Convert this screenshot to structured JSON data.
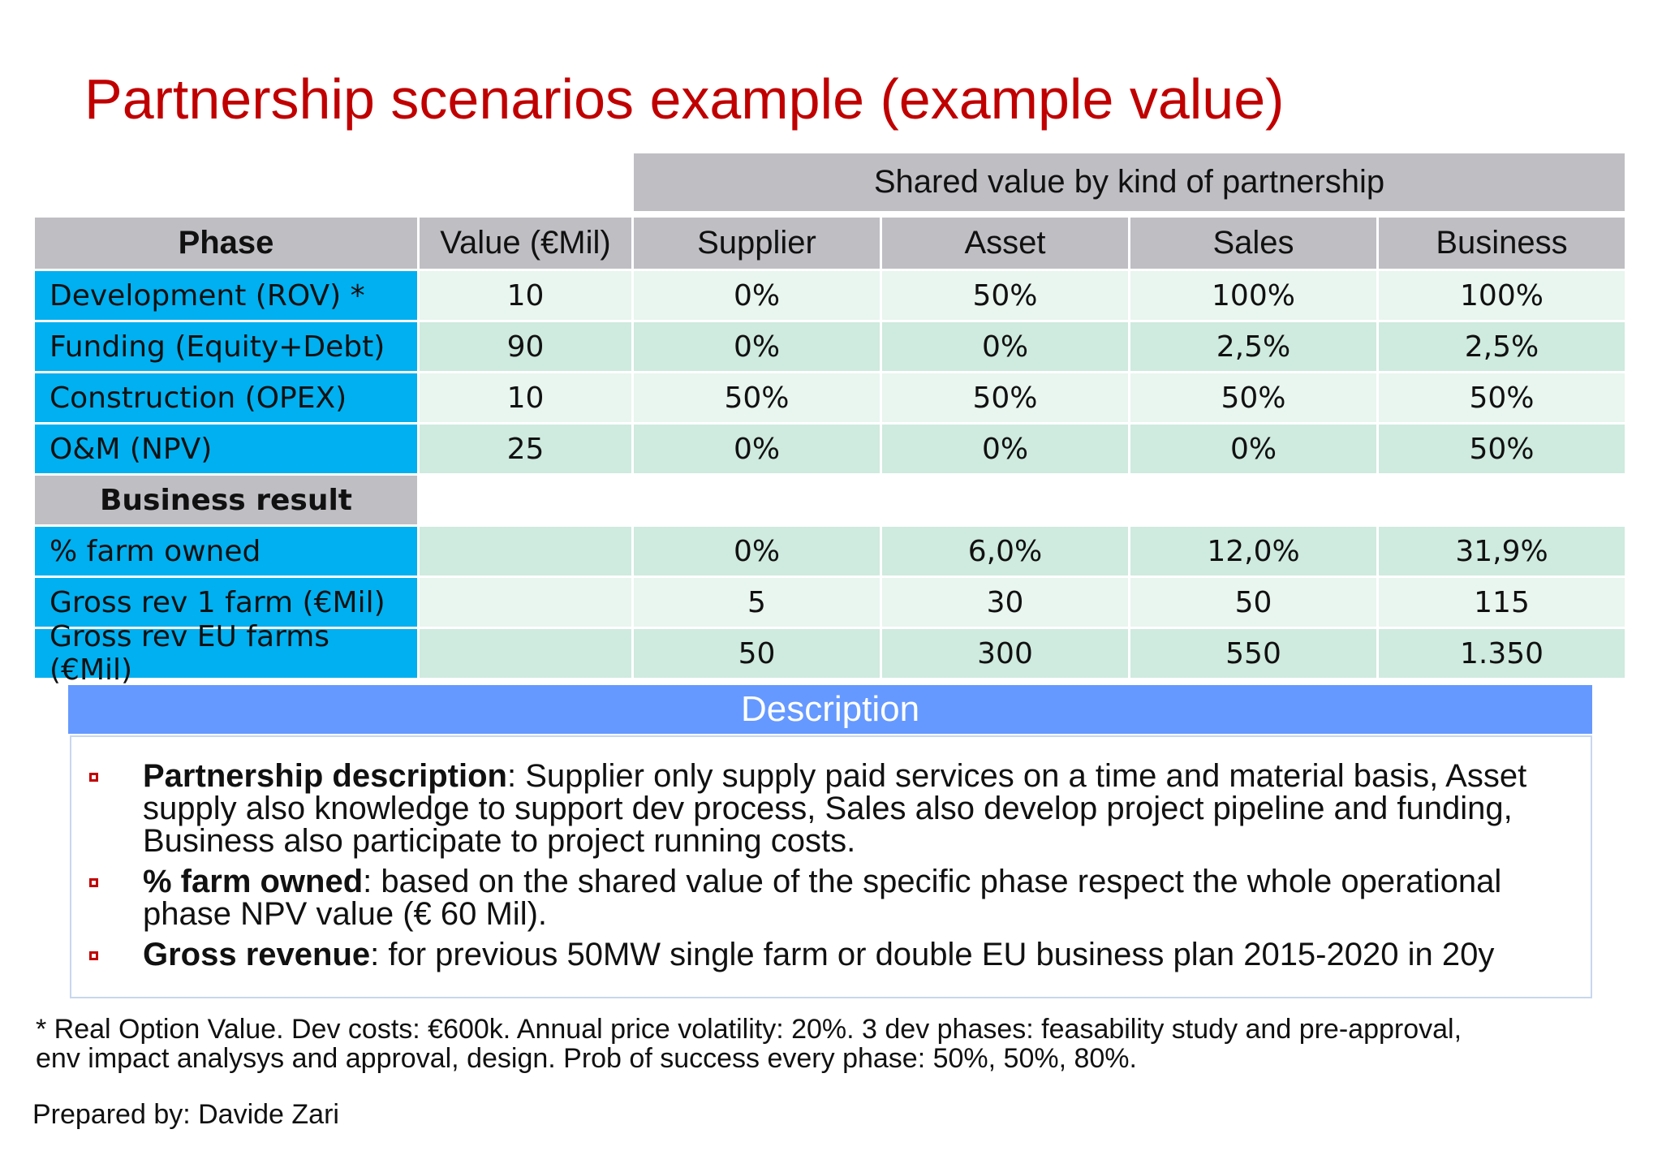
{
  "title": "Partnership scenarios example (example value)",
  "table": {
    "group_header": "Shared value by kind of partnership",
    "columns": [
      "Phase",
      "Value (€Mil)",
      "Supplier",
      "Asset",
      "Sales",
      "Business"
    ],
    "rows": [
      [
        "Development (ROV) *",
        "10",
        "0%",
        "50%",
        "100%",
        "100%"
      ],
      [
        "Funding (Equity+Debt)",
        "90",
        "0%",
        "0%",
        "2,5%",
        "2,5%"
      ],
      [
        "Construction (OPEX)",
        "10",
        "50%",
        "50%",
        "50%",
        "50%"
      ],
      [
        "O&M (NPV)",
        "25",
        "0%",
        "0%",
        "0%",
        "50%"
      ]
    ],
    "section": "Business result",
    "result_rows": [
      {
        "label": "% farm owned",
        "values": [
          "0%",
          "6,0%",
          "12,0%",
          "31,9%"
        ]
      },
      {
        "label": "Gross rev 1 farm (€Mil)",
        "values": [
          "5",
          "30",
          "50",
          "115"
        ]
      },
      {
        "label": "Gross rev EU farms (€Mil)",
        "values": [
          "50",
          "300",
          "550",
          "1.350"
        ]
      }
    ]
  },
  "description": {
    "title": "Description",
    "items": [
      {
        "term": "Partnership description",
        "text": ": Supplier only supply paid services on a time and material basis, Asset supply also knowledge to support dev process, Sales also develop project pipeline and funding, Business also participate to project running costs."
      },
      {
        "term": "% farm owned",
        "text": ": based on the shared value of the specific phase respect the whole operational phase NPV value (€ 60 Mil)."
      },
      {
        "term": "Gross revenue",
        "text": ": for previous 50MW single farm or double EU business plan 2015-2020 in 20y"
      }
    ]
  },
  "footnote": "* Real Option Value. Dev costs: €600k. Annual price volatility: 20%. 3 dev phases: feasability study and pre-approval, env impact analysys and approval, design. Prob of success every phase: 50%, 50%, 80%.",
  "prepared_by": "Prepared by: Davide Zari"
}
